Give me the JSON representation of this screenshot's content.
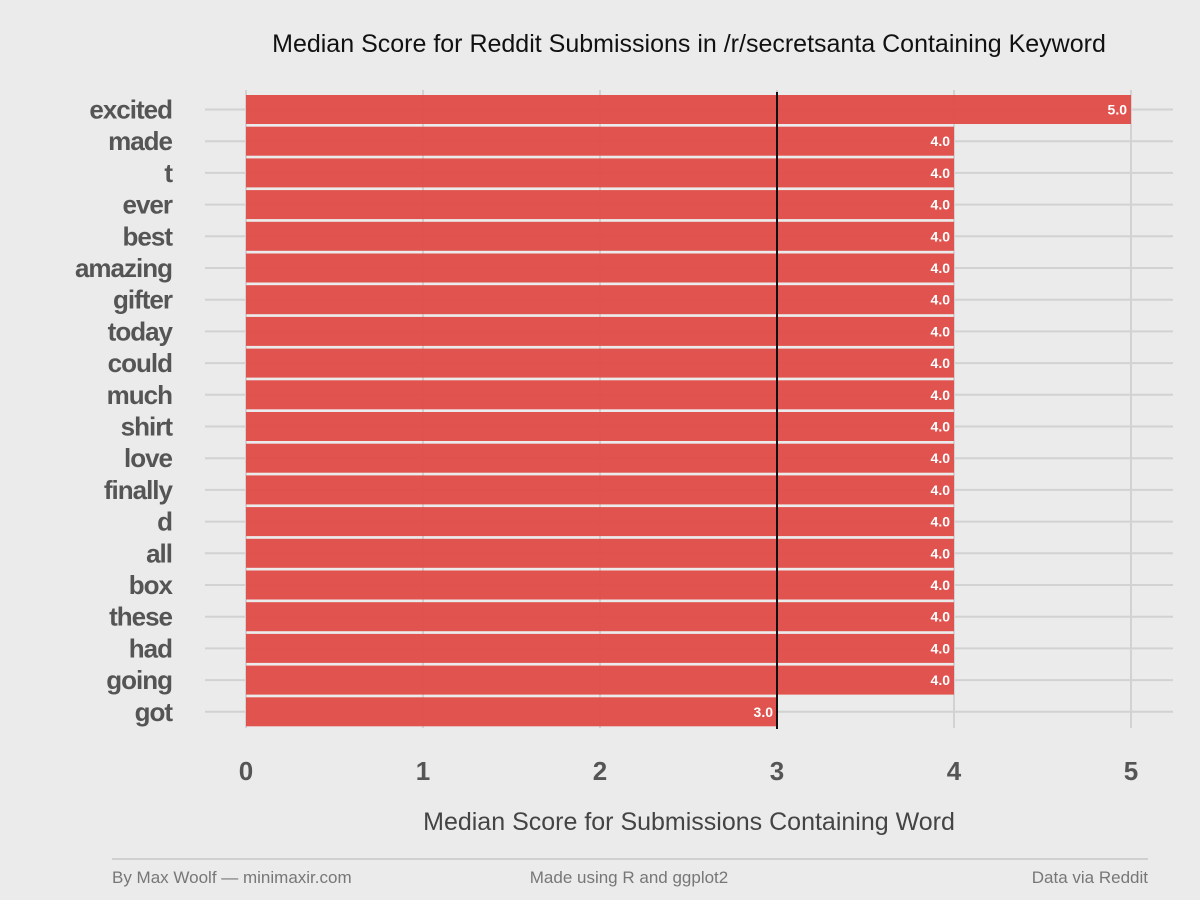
{
  "chart_data": {
    "type": "bar",
    "orientation": "horizontal",
    "title": "Median Score for Reddit Submissions in /r/secretsanta Containing Keyword",
    "xlabel": "Median Score for Submissions Containing Word",
    "ylabel": "",
    "categories": [
      "excited",
      "made",
      "t",
      "ever",
      "best",
      "amazing",
      "gifter",
      "today",
      "could",
      "much",
      "shirt",
      "love",
      "finally",
      "d",
      "all",
      "box",
      "these",
      "had",
      "going",
      "got"
    ],
    "values": [
      5.0,
      4.0,
      4.0,
      4.0,
      4.0,
      4.0,
      4.0,
      4.0,
      4.0,
      4.0,
      4.0,
      4.0,
      4.0,
      4.0,
      4.0,
      4.0,
      4.0,
      4.0,
      4.0,
      3.0
    ],
    "value_labels": [
      "5.0",
      "4.0",
      "4.0",
      "4.0",
      "4.0",
      "4.0",
      "4.0",
      "4.0",
      "4.0",
      "4.0",
      "4.0",
      "4.0",
      "4.0",
      "4.0",
      "4.0",
      "4.0",
      "4.0",
      "4.0",
      "4.0",
      "3.0"
    ],
    "xlim": [
      0,
      5
    ],
    "x_ticks": [
      0,
      1,
      2,
      3,
      4,
      5
    ],
    "x_tick_labels": [
      "0",
      "1",
      "2",
      "3",
      "4",
      "5"
    ],
    "reference_line": 3,
    "grid": true,
    "bar_color": "#e04b47",
    "reference_line_color": "#111111"
  },
  "footer": {
    "left": "By Max Woolf — minimaxir.com",
    "center": "Made using R and ggplot2",
    "right": "Data via Reddit"
  }
}
